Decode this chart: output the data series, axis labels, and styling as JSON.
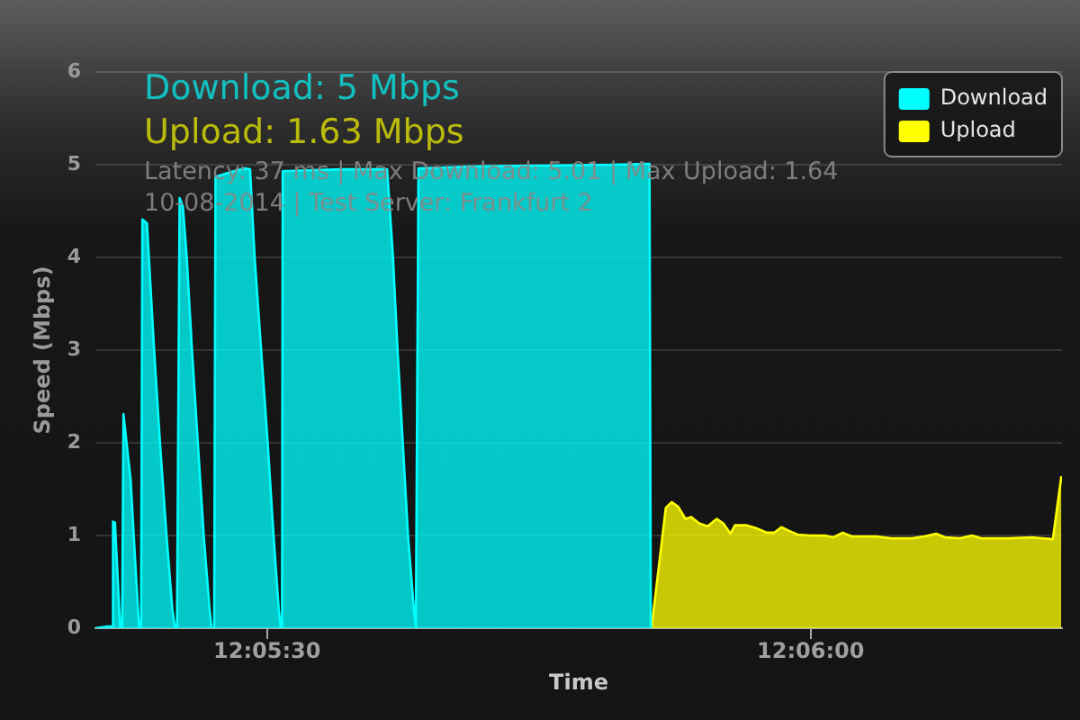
{
  "chart_data": {
    "type": "area",
    "xlabel": "Time",
    "ylabel": "Speed (Mbps)",
    "annotations": [
      "Download: 5 Mbps",
      "Upload: 1.63 Mbps",
      "Latency: 37 ms | Max Download: 5.01 | Max Upload: 1.64",
      "10-08-2014 | Test Server: Frankfurt 2"
    ],
    "xlim": [
      12.08904,
      12.10385
    ],
    "xticks": [
      {
        "value": 12.09167,
        "label": "12:05:30"
      },
      {
        "value": 12.1,
        "label": "12:06:00"
      }
    ],
    "ylim": [
      0,
      6
    ],
    "yticks": [
      0,
      1,
      2,
      3,
      4,
      5,
      6
    ],
    "grid": "y",
    "legend": "top right",
    "series": [
      {
        "name": "Download",
        "color": "#00ffff",
        "x": [
          12.08904,
          12.08923,
          12.08929,
          12.08931,
          12.08934,
          12.08942,
          12.08945,
          12.08947,
          12.08958,
          12.08966,
          12.08971,
          12.08974,
          12.08976,
          12.08983,
          12.08986,
          12.08994,
          12.09003,
          12.09013,
          12.09022,
          12.09026,
          12.09029,
          12.09033,
          12.09038,
          12.09044,
          12.09052,
          12.09061,
          12.0907,
          12.09079,
          12.09082,
          12.09086,
          12.09088,
          12.09102,
          12.09116,
          12.09133,
          12.09141,
          12.09148,
          12.09158,
          12.09168,
          12.09177,
          12.09185,
          12.09188,
          12.0919,
          12.09191,
          12.09226,
          12.09282,
          12.09351,
          12.0936,
          12.09367,
          12.09375,
          12.09383,
          12.09392,
          12.09395,
          12.09397,
          12.09399,
          12.09475,
          12.09585,
          12.09696,
          12.09753,
          12.09755
        ],
        "values": [
          0,
          0.02,
          0.02,
          1.15,
          1.14,
          0,
          0,
          2.31,
          1.6,
          0.6,
          0,
          0,
          4.41,
          4.37,
          4,
          3,
          2,
          1,
          0.2,
          0,
          0,
          4.64,
          4.55,
          4,
          3,
          2,
          1,
          0.2,
          0,
          0,
          4.87,
          4.9,
          4.93,
          4.96,
          4.95,
          4,
          3,
          2,
          1,
          0.2,
          0,
          0,
          4.93,
          4.94,
          4.95,
          4.95,
          4,
          3,
          2,
          1,
          0.2,
          0,
          0,
          4.96,
          4.98,
          4.99,
          5,
          5.01,
          0
        ]
      },
      {
        "name": "Upload",
        "color": "#ffff00",
        "x": [
          12.09756,
          12.09778,
          12.09787,
          12.09797,
          12.09808,
          12.09817,
          12.09829,
          12.09842,
          12.09856,
          12.09866,
          12.09877,
          12.09884,
          12.09902,
          12.09916,
          12.09933,
          12.09944,
          12.09955,
          12.09967,
          12.0998,
          12.09999,
          12.10022,
          12.10034,
          12.10049,
          12.10063,
          12.101,
          12.10123,
          12.10155,
          12.10174,
          12.10192,
          12.10206,
          12.10229,
          12.10247,
          12.10261,
          12.10302,
          12.10339,
          12.10371,
          12.10384
        ],
        "values": [
          0,
          1.3,
          1.36,
          1.31,
          1.18,
          1.2,
          1.13,
          1.1,
          1.18,
          1.13,
          1.02,
          1.11,
          1.11,
          1.08,
          1.03,
          1.03,
          1.09,
          1.05,
          1.01,
          1,
          1,
          0.98,
          1.03,
          0.99,
          0.99,
          0.97,
          0.97,
          0.99,
          1.02,
          0.98,
          0.97,
          1,
          0.97,
          0.97,
          0.98,
          0.96,
          1.64
        ]
      }
    ]
  }
}
